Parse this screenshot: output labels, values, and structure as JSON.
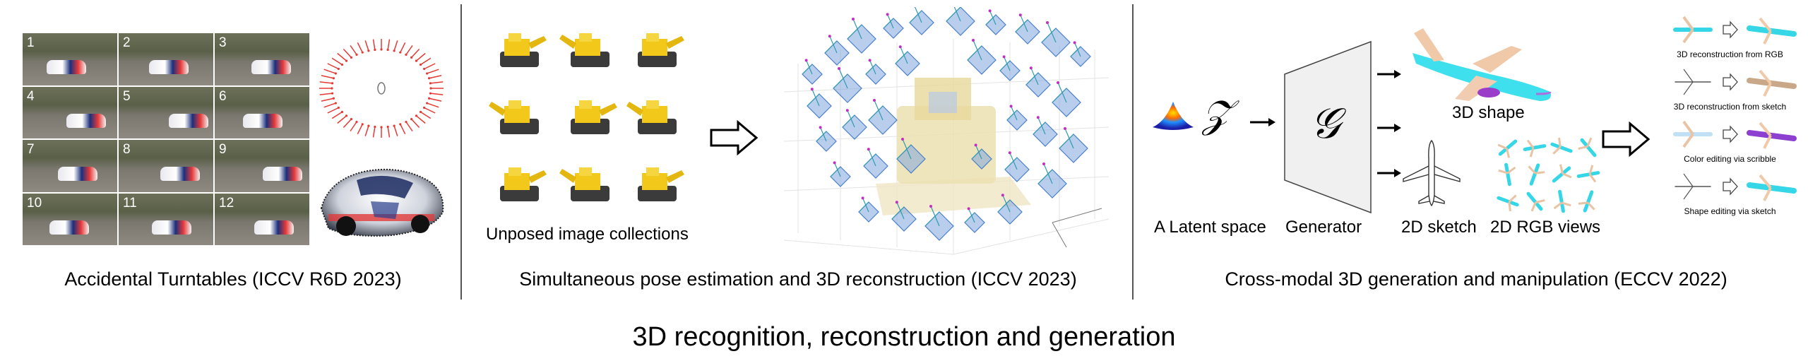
{
  "main_title": "3D recognition, reconstruction and generation",
  "panel1": {
    "caption": "Accidental Turntables (ICCV R6D 2023)",
    "frame_numbers": [
      "1",
      "2",
      "3",
      "4",
      "5",
      "6",
      "7",
      "8",
      "9",
      "10",
      "11",
      "12"
    ]
  },
  "panel2": {
    "caption": "Simultaneous pose estimation and 3D reconstruction (ICCV 2023)",
    "unposed_label": "Unposed image collections"
  },
  "panel3": {
    "caption": "Cross-modal 3D generation and manipulation (ECCV 2022)",
    "latent_label": "A Latent space",
    "z_symbol": "𝒵",
    "g_symbol": "𝒢",
    "generator_label": "Generator",
    "shape_label": "3D shape",
    "sketch_label": "2D sketch",
    "rgb_label": "2D RGB views",
    "tasks": [
      "3D reconstruction from RGB",
      "3D reconstruction from sketch",
      "Color editing via scribble",
      "Shape editing via sketch"
    ]
  },
  "colors": {
    "divider": "#555555",
    "camera_blue": "#4a7fc7",
    "turntable_red": "#e53935",
    "plane_cyan": "#35d6e6",
    "excavator_yellow": "#f2c81a"
  }
}
